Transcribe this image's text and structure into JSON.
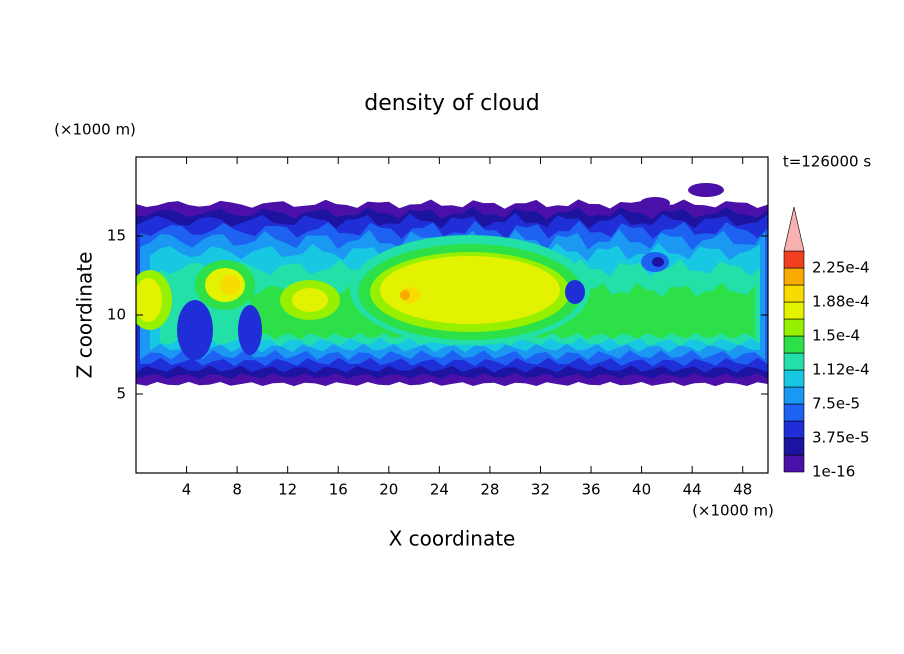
{
  "chart_data": {
    "type": "contour",
    "title": "density of cloud",
    "xlabel": "X coordinate",
    "ylabel": "Z coordinate",
    "x_unit": "(×1000 m)",
    "y_unit": "(×1000 m)",
    "annotation": "t=126000 s",
    "xlim": [
      0,
      50
    ],
    "ylim": [
      0,
      20
    ],
    "xticks": [
      4,
      8,
      12,
      16,
      20,
      24,
      28,
      32,
      36,
      40,
      44,
      48
    ],
    "yticks": [
      5,
      10,
      15
    ],
    "colorbar": {
      "levels": [
        1e-16,
        1.875e-05,
        {
          "value": 3.75e-05,
          "label": "3.75e-5"
        },
        5.625e-05,
        {
          "value": 7.5e-05,
          "label": "7.5e-5"
        },
        9.375e-05,
        {
          "value": 0.0001125,
          "label": "1.12e-4"
        },
        0.00013125,
        {
          "value": 0.00015,
          "label": "1.5e-4"
        },
        0.00016875,
        {
          "value": 0.0001875,
          "label": "1.88e-4"
        },
        0.00020625,
        {
          "value": 0.000225,
          "label": "2.25e-4"
        }
      ],
      "colors": [
        "#4a10a8",
        "#1c14a0",
        "#1f2ed6",
        "#1e62f2",
        "#1a98f2",
        "#18c8e2",
        "#22e0a8",
        "#2ee048",
        "#96f000",
        "#e2f200",
        "#f8dc00",
        "#f8aa00",
        "#f04020"
      ],
      "extend_color": "#f8b0b0"
    }
  }
}
